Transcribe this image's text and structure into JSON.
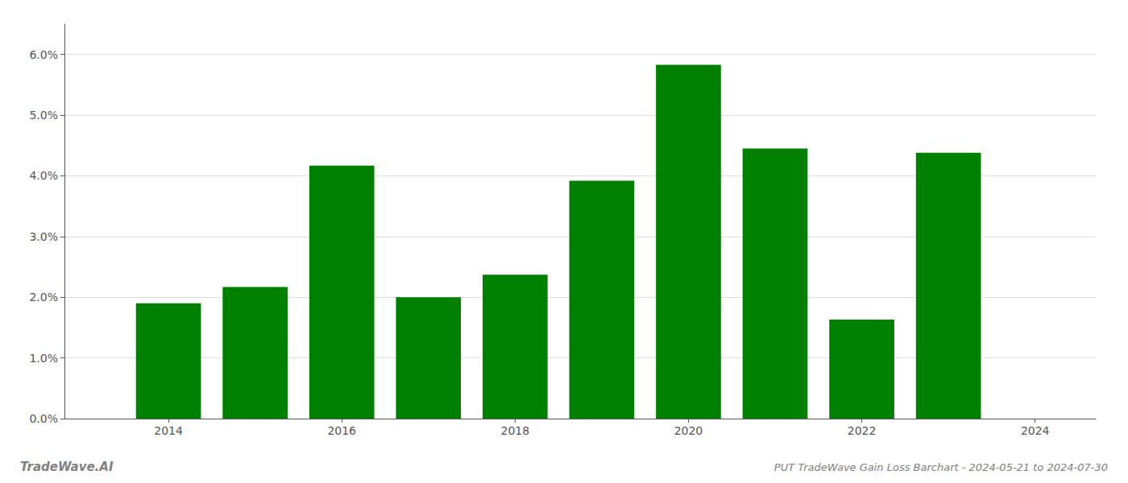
{
  "chart_data": {
    "type": "bar",
    "title": "PUT TradeWave Gain Loss Barchart - 2024-05-21 to 2024-07-30",
    "annotations": [
      "TradeWave.AI"
    ],
    "x": [
      2014,
      2015,
      2016,
      2017,
      2018,
      2019,
      2020,
      2021,
      2022,
      2023
    ],
    "values": [
      0.019,
      0.0217,
      0.0417,
      0.02,
      0.0237,
      0.0392,
      0.0583,
      0.0445,
      0.0163,
      0.0438
    ],
    "color": "#008000",
    "xlim": [
      2012.8,
      2024.7
    ],
    "xticks": [
      2014,
      2016,
      2018,
      2020,
      2022,
      2024
    ],
    "ylim": [
      0.0,
      0.065
    ],
    "yticks": [
      {
        "value": 0.0,
        "label": "0.0%"
      },
      {
        "value": 0.01,
        "label": "1.0%"
      },
      {
        "value": 0.02,
        "label": "2.0%"
      },
      {
        "value": 0.03,
        "label": "3.0%"
      },
      {
        "value": 0.04,
        "label": "4.0%"
      },
      {
        "value": 0.05,
        "label": "5.0%"
      },
      {
        "value": 0.06,
        "label": "6.0%"
      }
    ],
    "grid": true
  }
}
